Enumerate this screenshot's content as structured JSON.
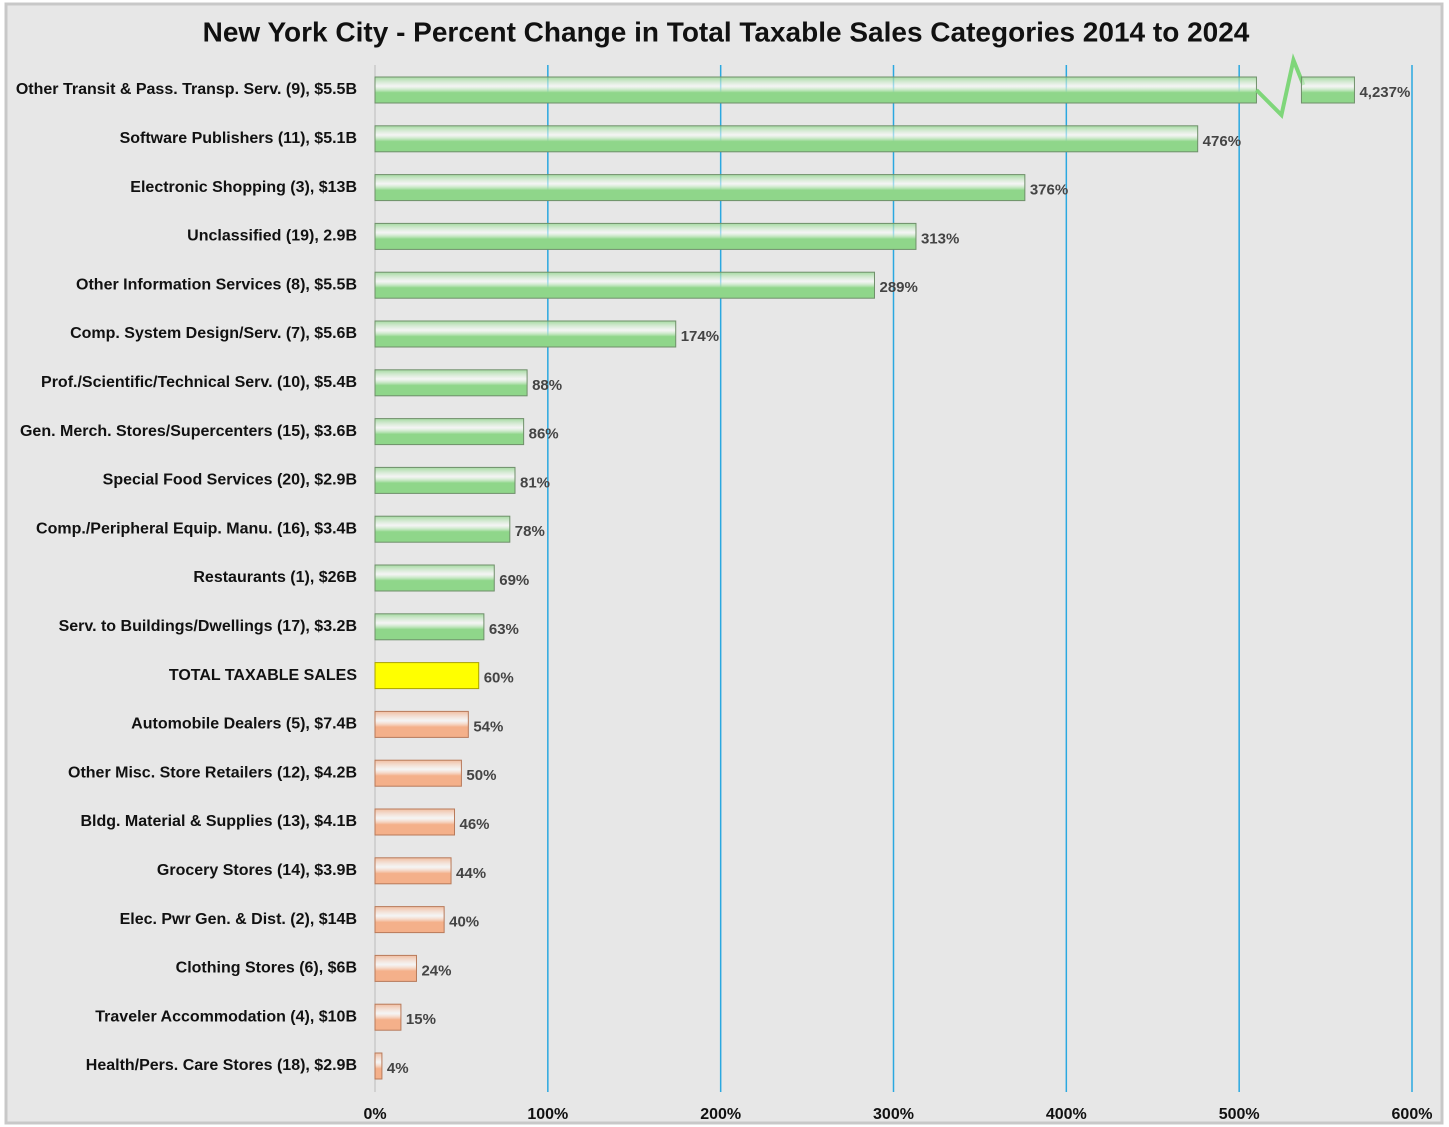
{
  "chart_data": {
    "type": "hbar",
    "title": "New York City - Percent Change in Total Taxable Sales Categories  2014 to 2024",
    "categories": [
      "Other Transit & Pass. Transp. Serv. (9), $5.5B",
      "Software Publishers (11), $5.1B",
      "Electronic Shopping (3), $13B",
      "Unclassified (19), 2.9B",
      "Other Information Services (8), $5.5B",
      "Comp. System Design/Serv. (7), $5.6B",
      "Prof./Scientific/Technical Serv. (10), $5.4B",
      "Gen. Merch. Stores/Supercenters (15), $3.6B",
      "Special Food Services (20), $2.9B",
      "Comp./Peripheral Equip. Manu. (16), $3.4B",
      "Restaurants (1), $26B",
      "Serv. to Buildings/Dwellings (17), $3.2B",
      "TOTAL TAXABLE SALES",
      "Automobile Dealers (5), $7.4B",
      "Other Misc. Store Retailers (12), $4.2B",
      "Bldg. Material & Supplies (13), $4.1B",
      "Grocery Stores (14), $3.9B",
      "Elec. Pwr Gen. & Dist. (2), $14B",
      "Clothing Stores (6), $6B",
      "Traveler Accommodation (4), $10B",
      "Health/Pers. Care Stores (18), $2.9B"
    ],
    "values": [
      4237,
      476,
      376,
      313,
      289,
      174,
      88,
      86,
      81,
      78,
      69,
      63,
      60,
      54,
      50,
      46,
      44,
      40,
      24,
      15,
      4
    ],
    "value_labels": [
      "4,237%",
      "476%",
      "376%",
      "313%",
      "289%",
      "174%",
      "88%",
      "86%",
      "81%",
      "78%",
      "69%",
      "63%",
      "60%",
      "54%",
      "50%",
      "46%",
      "44%",
      "40%",
      "24%",
      "15%",
      "4%"
    ],
    "colors": [
      "#8fd68a",
      "#8fd68a",
      "#8fd68a",
      "#8fd68a",
      "#8fd68a",
      "#8fd68a",
      "#8fd68a",
      "#8fd68a",
      "#8fd68a",
      "#8fd68a",
      "#8fd68a",
      "#8fd68a",
      "#ffff00",
      "#f4b08a",
      "#f4b08a",
      "#f4b08a",
      "#f4b08a",
      "#f4b08a",
      "#f4b08a",
      "#f4b08a",
      "#f4b08a"
    ],
    "xlim": [
      0,
      600
    ],
    "xticks": [
      {
        "value": 0,
        "label": "0%"
      },
      {
        "value": 100,
        "label": "100%"
      },
      {
        "value": 200,
        "label": "200%"
      },
      {
        "value": 300,
        "label": "300%"
      },
      {
        "value": 400,
        "label": "400%"
      },
      {
        "value": 500,
        "label": "500%"
      },
      {
        "value": 600,
        "label": "600%"
      }
    ],
    "grid": true
  }
}
